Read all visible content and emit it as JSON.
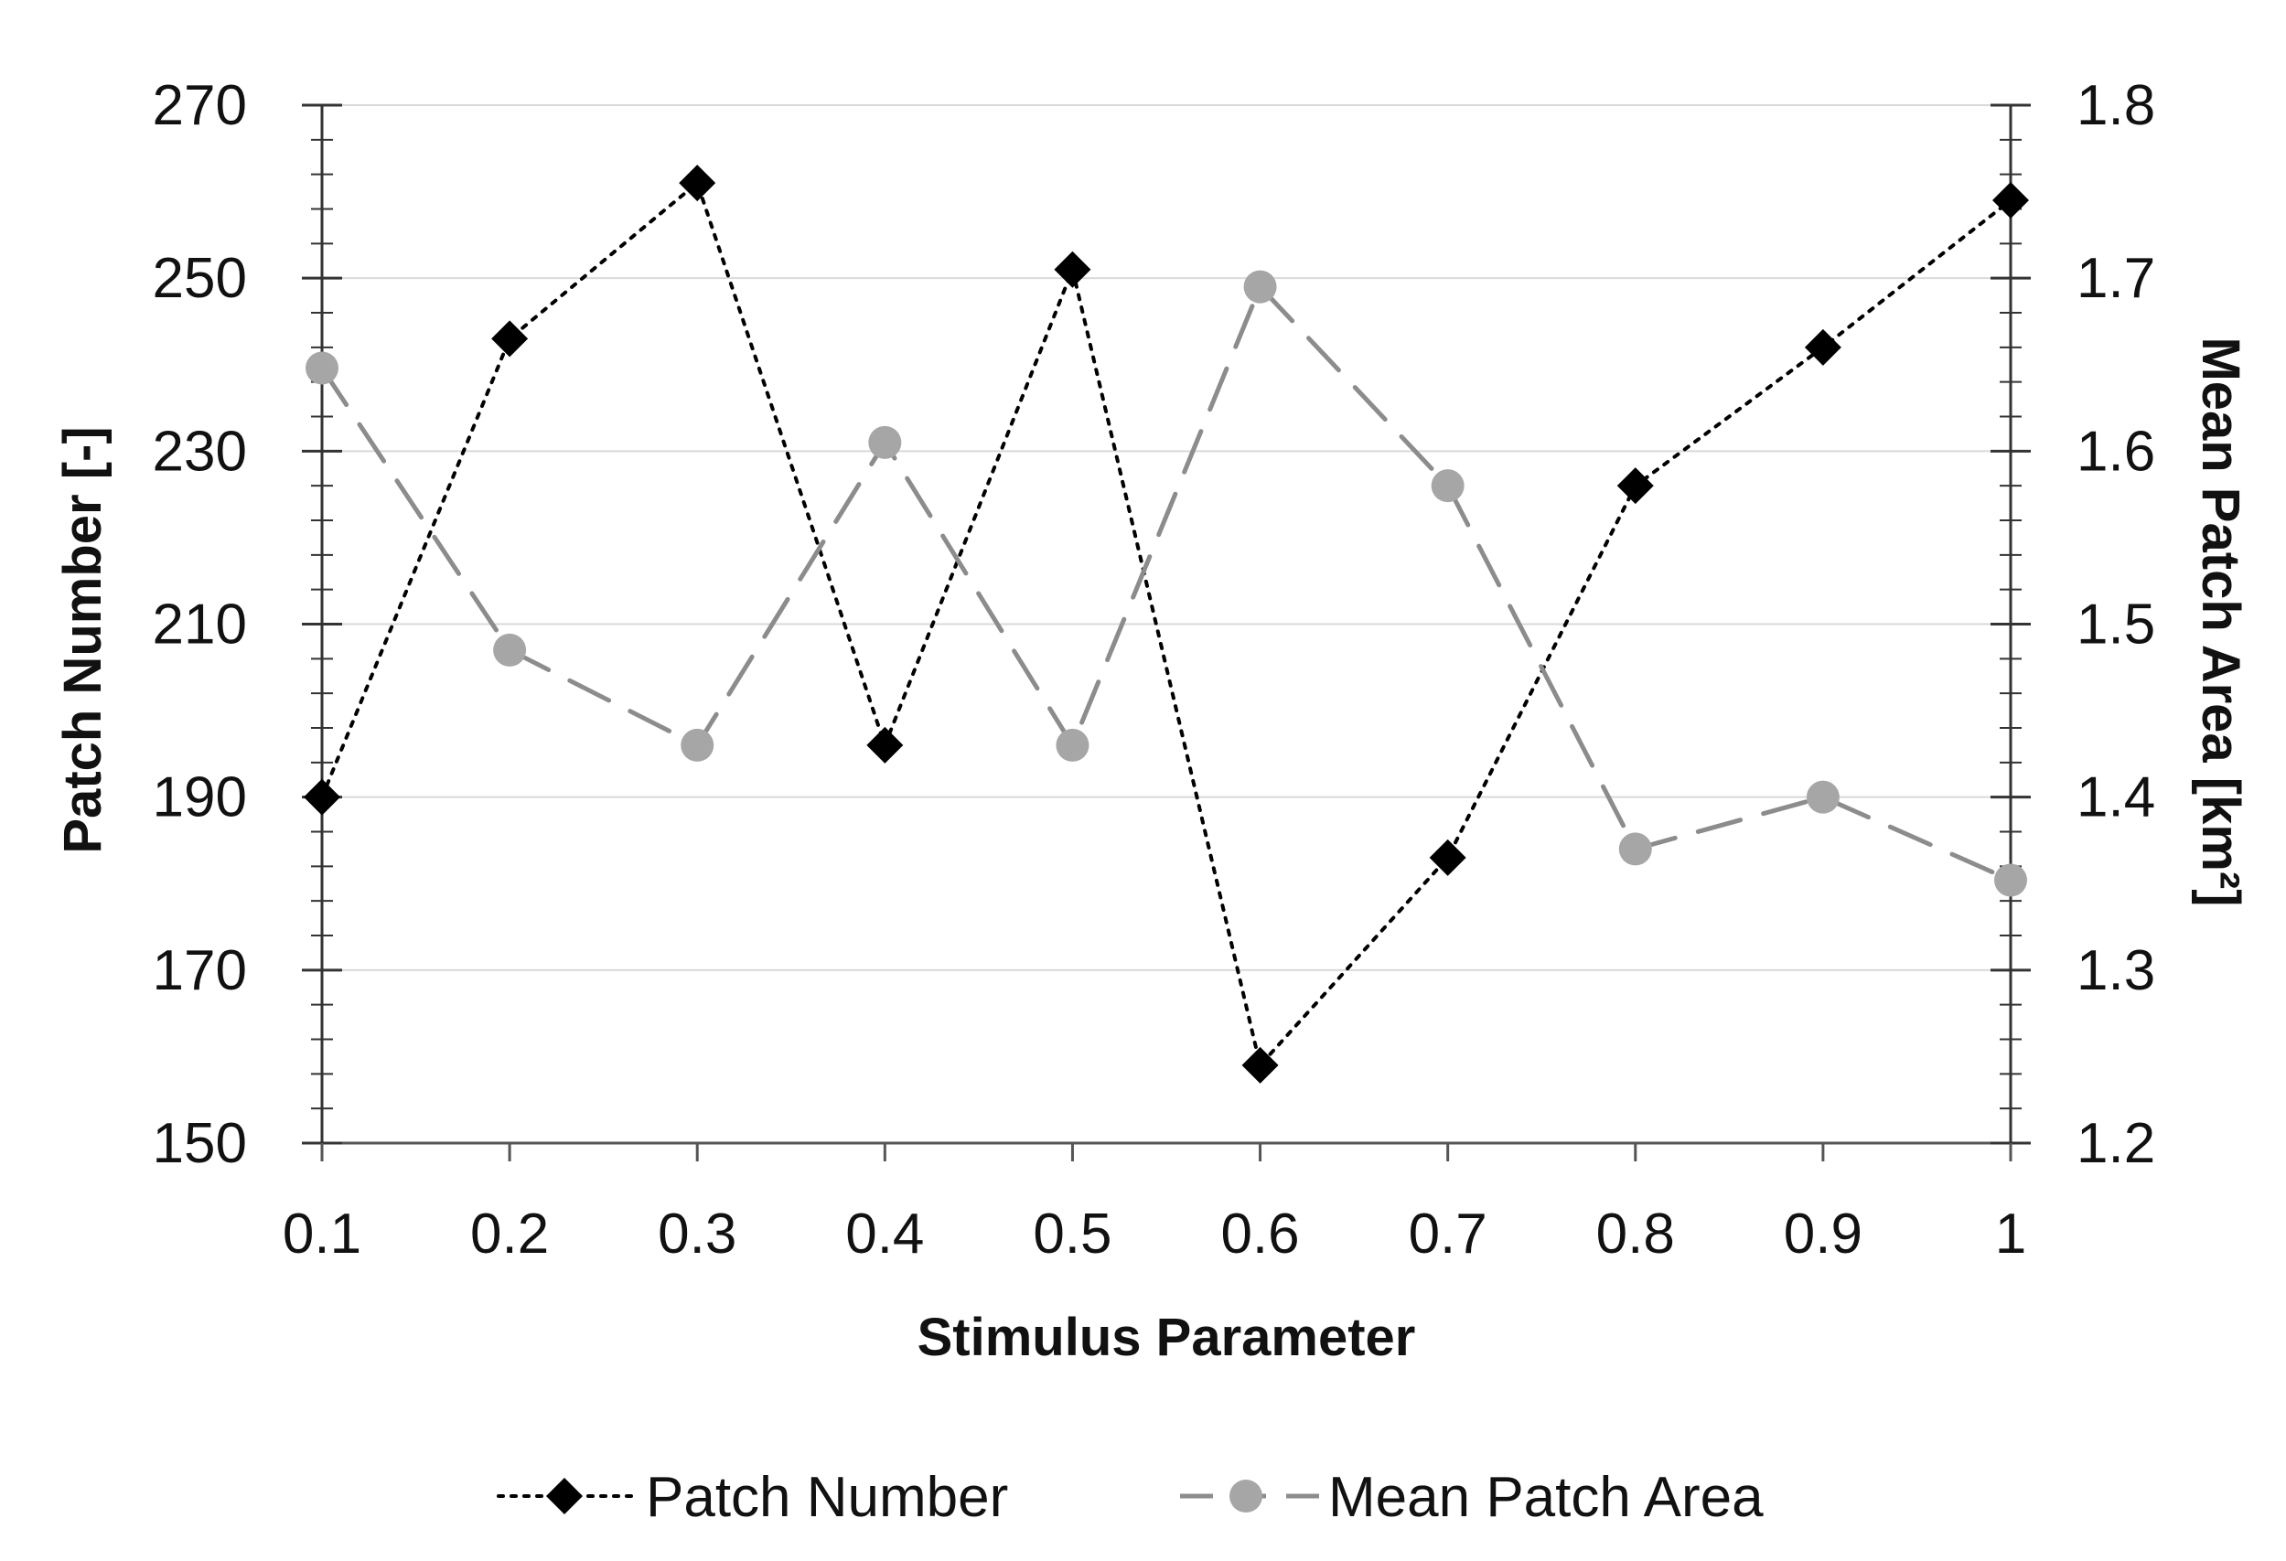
{
  "chart_data": {
    "type": "line",
    "x": [
      0.1,
      0.2,
      0.3,
      0.4,
      0.5,
      0.6,
      0.7,
      0.8,
      0.9,
      1
    ],
    "x_tick_labels": [
      "0.1",
      "0.2",
      "0.3",
      "0.4",
      "0.5",
      "0.6",
      "0.7",
      "0.8",
      "0.9",
      "1"
    ],
    "xlabel": "Stimulus Parameter",
    "ylabel_left": "Patch Number [-]",
    "ylabel_right": "Mean Patch Area [km²]",
    "ylim_left": [
      150,
      270
    ],
    "ylim_right": [
      1.2,
      1.8
    ],
    "y_ticks_left": [
      "150",
      "170",
      "190",
      "210",
      "230",
      "250",
      "270"
    ],
    "y_ticks_right": [
      "1.2",
      "1.3",
      "1.4",
      "1.5",
      "1.6",
      "1.7",
      "1.8"
    ],
    "grid": "horizontal",
    "legend_position": "bottom",
    "series": [
      {
        "name": "Patch Number",
        "axis": "left",
        "values": [
          190,
          243,
          261,
          196,
          251,
          159,
          183,
          226,
          242,
          259
        ],
        "color": "#000000",
        "line_style": "dotted",
        "marker": "diamond"
      },
      {
        "name": "Mean Patch Area",
        "axis": "right",
        "values": [
          1.648,
          1.485,
          1.43,
          1.605,
          1.43,
          1.695,
          1.58,
          1.37,
          1.4,
          1.352
        ],
        "color": "#a6a6a6",
        "line_style": "dashed",
        "marker": "circle"
      }
    ]
  }
}
